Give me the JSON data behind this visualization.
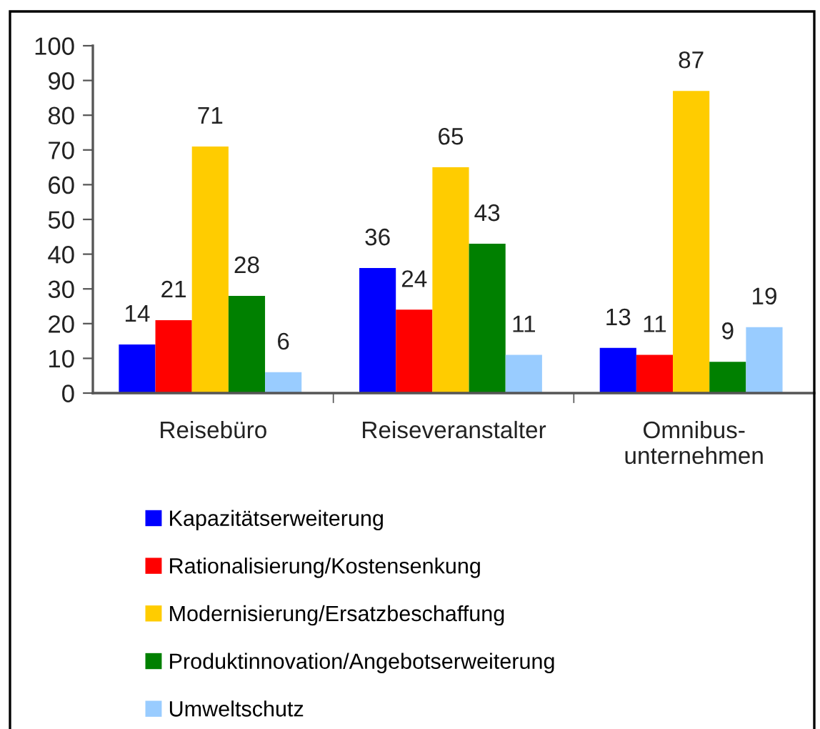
{
  "chart_data": {
    "type": "bar",
    "categories": [
      "Reisebüro",
      "Reiseveranstalter",
      "Omnibus-\nunternehmen"
    ],
    "series": [
      {
        "name": "Kapazitätserweiterung",
        "color": "#0000ff",
        "values": [
          14,
          36,
          13
        ]
      },
      {
        "name": "Rationalisierung/Kostensenkung",
        "color": "#ff0000",
        "values": [
          21,
          24,
          11
        ]
      },
      {
        "name": "Modernisierung/Ersatzbeschaffung",
        "color": "#ffcc00",
        "values": [
          71,
          65,
          87
        ]
      },
      {
        "name": "Produktinnovation/Angebotserweiterung",
        "color": "#008000",
        "values": [
          28,
          43,
          9
        ]
      },
      {
        "name": "Umweltschutz",
        "color": "#99ccff",
        "values": [
          6,
          11,
          19
        ]
      }
    ],
    "ylim": [
      0,
      100
    ],
    "yticks": [
      0,
      10,
      20,
      30,
      40,
      50,
      60,
      70,
      80,
      90,
      100
    ],
    "data_labels": true,
    "legend": "bottom"
  }
}
